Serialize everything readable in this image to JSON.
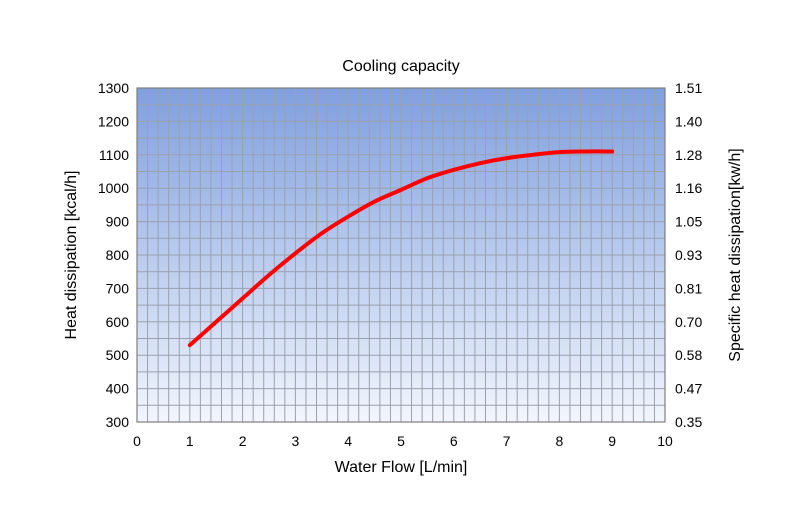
{
  "chart_data": {
    "type": "line",
    "title": "Cooling capacity",
    "xlabel": "Water Flow [L/min]",
    "ylabel": "Heat dissipation [kcal/h]",
    "y2label": "Specific heat dissipation[kw/h]",
    "xlim": [
      0,
      10
    ],
    "ylim": [
      300,
      1300
    ],
    "x_ticks": [
      "0",
      "1",
      "2",
      "3",
      "4",
      "5",
      "6",
      "7",
      "8",
      "9",
      "10"
    ],
    "y_ticks": [
      "300",
      "400",
      "500",
      "600",
      "700",
      "800",
      "900",
      "1000",
      "1100",
      "1200",
      "1300"
    ],
    "y2_ticks": [
      "0.35",
      "0.47",
      "0.58",
      "0.70",
      "0.81",
      "0.93",
      "1.05",
      "1.16",
      "1.28",
      "1.40",
      "1.51"
    ],
    "grid": true,
    "series": [
      {
        "name": "Cooling capacity",
        "color": "#ff0000",
        "x": [
          1,
          1.5,
          2,
          2.5,
          3,
          3.5,
          4,
          4.5,
          5,
          5.5,
          6,
          6.5,
          7,
          7.5,
          8,
          8.5,
          9
        ],
        "y": [
          530,
          600,
          670,
          740,
          805,
          865,
          915,
          960,
          995,
          1030,
          1055,
          1075,
          1090,
          1100,
          1108,
          1110,
          1110
        ]
      }
    ]
  },
  "colors": {
    "plot_top": "#7f9fdf",
    "plot_bottom": "#f2f6fd",
    "grid": "#9aa1ad",
    "frame": "#7f7f7f",
    "line": "#ff0000"
  }
}
